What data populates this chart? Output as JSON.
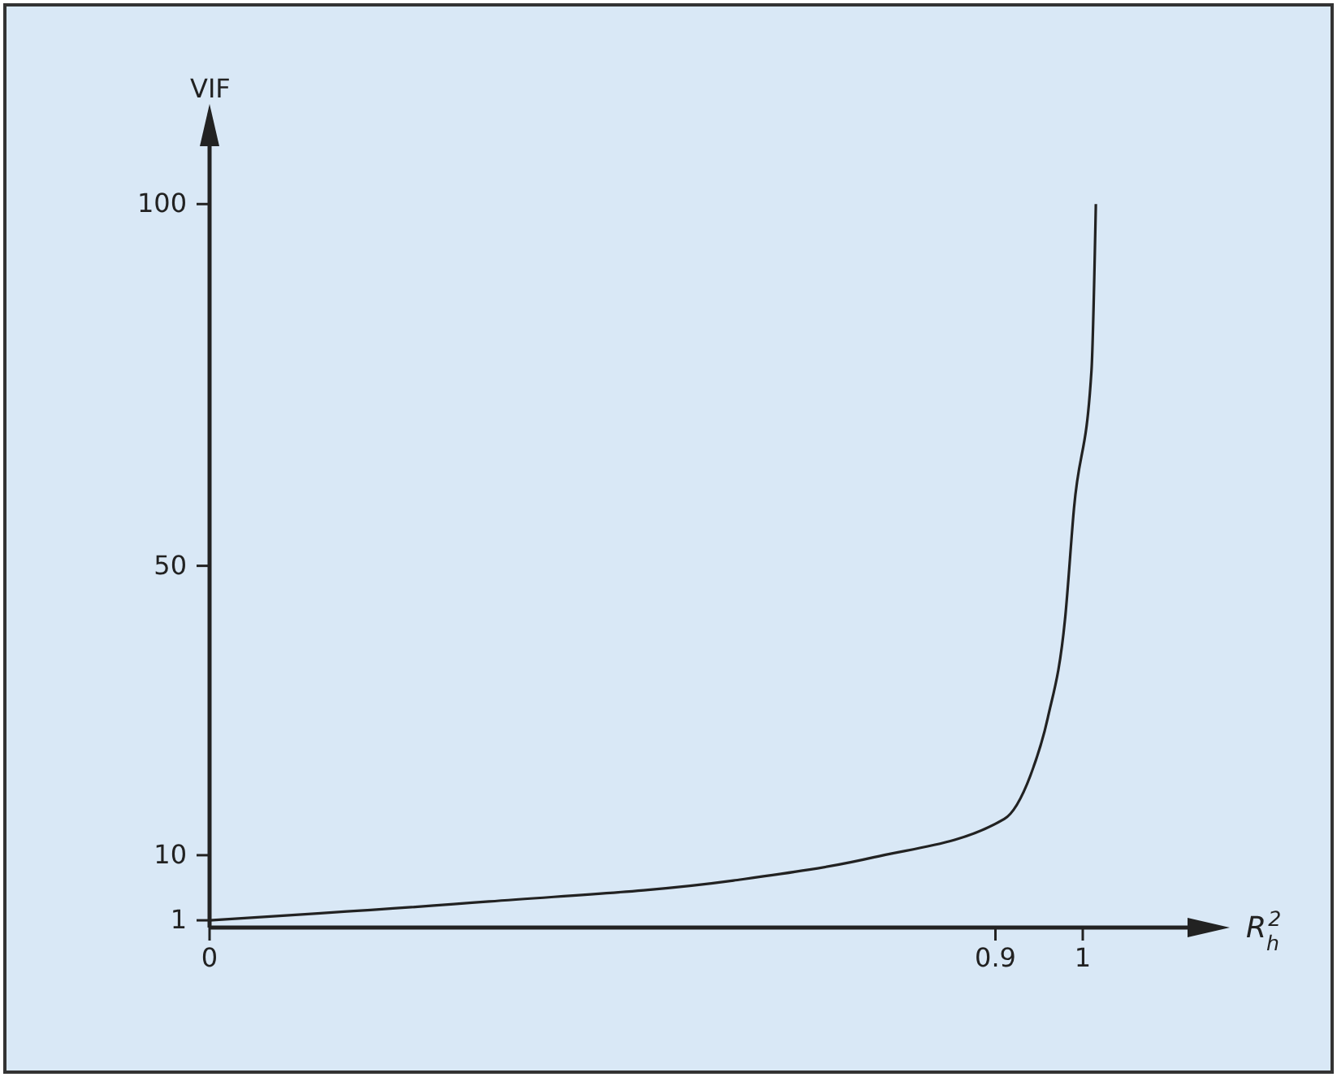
{
  "chart_data": {
    "type": "line",
    "xlabel": "R$_{h}$$^{2}$",
    "ylabel": "VIF",
    "xlim": [
      0,
      1.12
    ],
    "ylim": [
      0,
      108
    ],
    "xticks": [
      0,
      0.9,
      1
    ],
    "yticks": [
      1,
      10,
      50,
      100
    ],
    "x": [
      0,
      0.32,
      0.6,
      0.76,
      0.91,
      0.94,
      0.96,
      0.98,
      0.99,
      1.01,
      1.015
    ],
    "series": [
      {
        "color": "#222222",
        "values": [
          1,
          3.6,
          6.5,
          9.7,
          15,
          21,
          29,
          43,
          58,
          77,
          100
        ]
      }
    ]
  }
}
